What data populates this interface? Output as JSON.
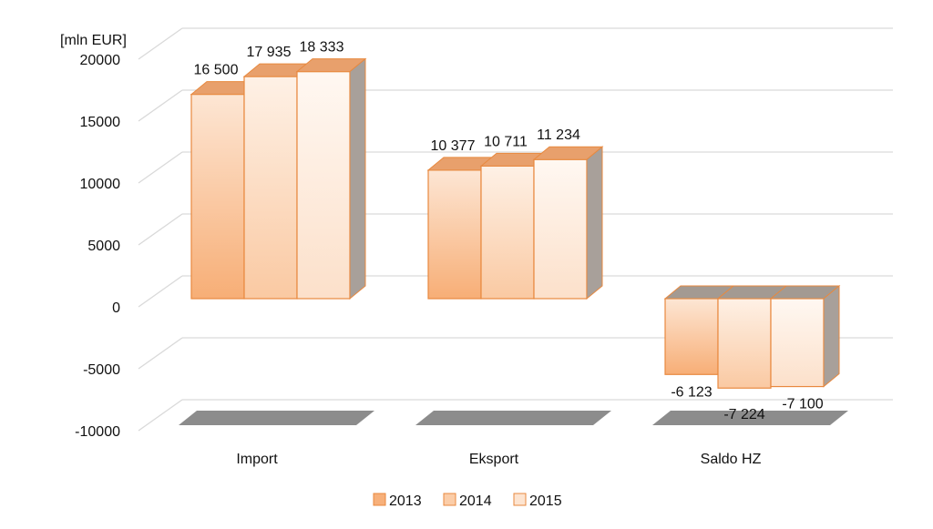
{
  "chart_data": {
    "type": "bar",
    "title": "",
    "xlabel": "",
    "ylabel": "[mln EUR]",
    "ylim": [
      -10000,
      20000
    ],
    "yticks": [
      20000,
      15000,
      10000,
      5000,
      0,
      -5000,
      -10000
    ],
    "ytick_labels": [
      "20000",
      "15000",
      "10000",
      "5000",
      "0",
      "-5000",
      "-10000"
    ],
    "grid": true,
    "three_d": true,
    "legend_position": "bottom",
    "categories": [
      "Import",
      "Eksport",
      "Saldo HZ"
    ],
    "series": [
      {
        "name": "2013",
        "values": [
          16500,
          10377,
          -6123
        ],
        "labels": [
          "16 500",
          "10 377",
          "-6 123"
        ],
        "color": "#F7B07A"
      },
      {
        "name": "2014",
        "values": [
          17935,
          10711,
          -7224
        ],
        "labels": [
          "17 935",
          "10 711",
          "-7 224"
        ],
        "color": "#FBCDA8"
      },
      {
        "name": "2015",
        "values": [
          18333,
          11234,
          -7100
        ],
        "labels": [
          "18 333",
          "11 234",
          "-7 100"
        ],
        "color": "#FDE4D0"
      }
    ]
  }
}
